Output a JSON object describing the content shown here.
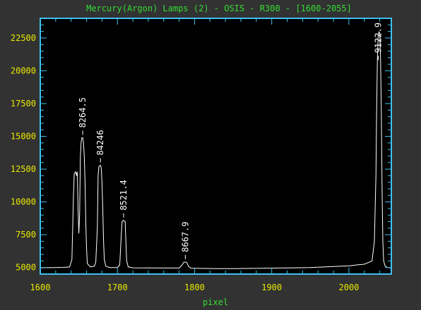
{
  "chart_data": {
    "type": "line",
    "title": "Mercury(Argon) Lamps (2) - OSIS - R300 - [1600-2055]",
    "xlabel": "pixel",
    "ylabel": "",
    "xlim": [
      1600,
      2055
    ],
    "ylim": [
      4500,
      24000
    ],
    "x_ticks": [
      1600,
      1700,
      1800,
      1900,
      2000
    ],
    "x_tick_labels": [
      "1600",
      "1700",
      "1800",
      "1900",
      "2000"
    ],
    "y_ticks": [
      5000,
      7500,
      10000,
      12500,
      15000,
      17500,
      20000,
      22500
    ],
    "y_tick_labels": [
      "5000",
      "7500",
      "10000",
      "12500",
      "15000",
      "17500",
      "20000",
      "22500"
    ],
    "grid": false,
    "series": [
      {
        "color": "#ffffff",
        "points": [
          [
            1600,
            4980
          ],
          [
            1610,
            4990
          ],
          [
            1620,
            5000
          ],
          [
            1630,
            5010
          ],
          [
            1638,
            5040
          ],
          [
            1641,
            5600
          ],
          [
            1643,
            10500
          ],
          [
            1644,
            12150
          ],
          [
            1646,
            12300
          ],
          [
            1647,
            12000
          ],
          [
            1648,
            12300
          ],
          [
            1649,
            9500
          ],
          [
            1650,
            7600
          ],
          [
            1651,
            9000
          ],
          [
            1652,
            13500
          ],
          [
            1653,
            14600
          ],
          [
            1654,
            14900
          ],
          [
            1655,
            14900
          ],
          [
            1656,
            14500
          ],
          [
            1657,
            13500
          ],
          [
            1658,
            11500
          ],
          [
            1659,
            8500
          ],
          [
            1660,
            6500
          ],
          [
            1661,
            5300
          ],
          [
            1665,
            5050
          ],
          [
            1670,
            5100
          ],
          [
            1672,
            5400
          ],
          [
            1674,
            8000
          ],
          [
            1675,
            12000
          ],
          [
            1676,
            12700
          ],
          [
            1678,
            12800
          ],
          [
            1679,
            12600
          ],
          [
            1680,
            11500
          ],
          [
            1681,
            9500
          ],
          [
            1682,
            7000
          ],
          [
            1683,
            5600
          ],
          [
            1685,
            5100
          ],
          [
            1690,
            5000
          ],
          [
            1700,
            5000
          ],
          [
            1703,
            5200
          ],
          [
            1705,
            7500
          ],
          [
            1706,
            8500
          ],
          [
            1708,
            8600
          ],
          [
            1710,
            8500
          ],
          [
            1711,
            7000
          ],
          [
            1712,
            5500
          ],
          [
            1714,
            5050
          ],
          [
            1720,
            4980
          ],
          [
            1740,
            4970
          ],
          [
            1760,
            4960
          ],
          [
            1780,
            4960
          ],
          [
            1784,
            5200
          ],
          [
            1786,
            5400
          ],
          [
            1788,
            5420
          ],
          [
            1790,
            5380
          ],
          [
            1792,
            5100
          ],
          [
            1795,
            4950
          ],
          [
            1810,
            4930
          ],
          [
            1830,
            4920
          ],
          [
            1850,
            4920
          ],
          [
            1870,
            4930
          ],
          [
            1890,
            4940
          ],
          [
            1910,
            4960
          ],
          [
            1930,
            4980
          ],
          [
            1950,
            5000
          ],
          [
            1970,
            5050
          ],
          [
            1990,
            5100
          ],
          [
            2000,
            5120
          ],
          [
            2010,
            5200
          ],
          [
            2020,
            5250
          ],
          [
            2030,
            5500
          ],
          [
            2033,
            7000
          ],
          [
            2035,
            12000
          ],
          [
            2036,
            17000
          ],
          [
            2037,
            21000
          ],
          [
            2038,
            22700
          ],
          [
            2039,
            23000
          ],
          [
            2040,
            22800
          ],
          [
            2041,
            21000
          ],
          [
            2042,
            17000
          ],
          [
            2043,
            11000
          ],
          [
            2044,
            7000
          ],
          [
            2045,
            5500
          ],
          [
            2047,
            5100
          ],
          [
            2050,
            5000
          ],
          [
            2055,
            4980
          ]
        ]
      }
    ],
    "annotations": [
      {
        "text": "8264.5",
        "x": 1655,
        "y": 14900
      },
      {
        "text": "84246",
        "x": 1678,
        "y": 12800
      },
      {
        "text": "8521.4",
        "x": 1708,
        "y": 8600
      },
      {
        "text": "8667.9",
        "x": 1788,
        "y": 5420
      },
      {
        "text": "9122.9",
        "x": 2038,
        "y": 20600
      }
    ],
    "colors": {
      "background": "#323232",
      "plot_background": "#000000",
      "frame": "#40c0f0",
      "title": "#33dd33",
      "tick_labels": "#e8e800",
      "axis_label": "#33dd33",
      "line": "#ffffff"
    }
  }
}
